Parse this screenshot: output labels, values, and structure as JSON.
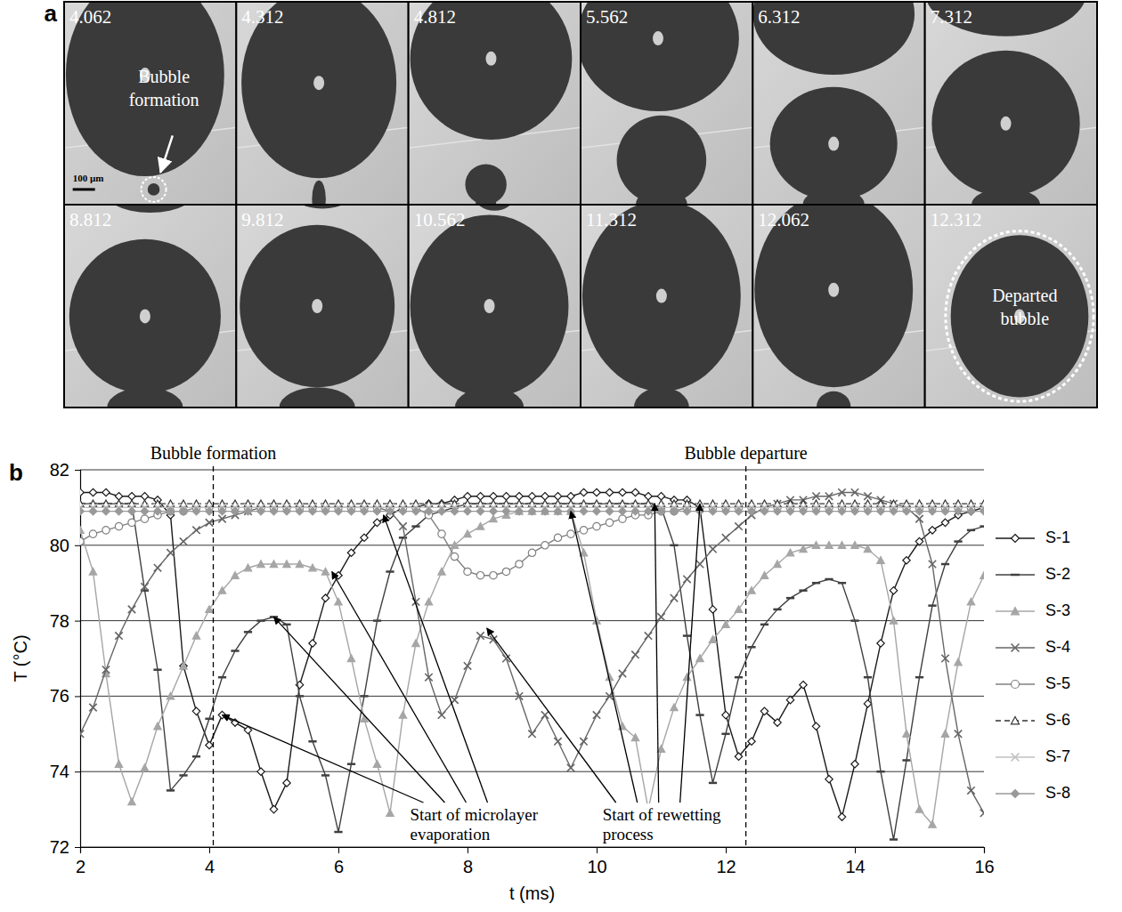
{
  "panel_a": {
    "label": "a",
    "frames": [
      4.062,
      4.312,
      4.812,
      5.562,
      6.312,
      7.312,
      8.812,
      9.812,
      10.562,
      11.312,
      12.062,
      12.312
    ],
    "bubble_formation_label": "Bubble formation",
    "departed_label": "Departed bubble",
    "scale_bar": "100 µm"
  },
  "panel_b": {
    "label": "b"
  },
  "chart_data": {
    "type": "line",
    "xlabel": "t (ms)",
    "ylabel": "T (°C)",
    "xlim": [
      2,
      16
    ],
    "ylim": [
      72,
      82
    ],
    "xticks": [
      2,
      4,
      6,
      8,
      10,
      12,
      14,
      16
    ],
    "yticks": [
      72,
      74,
      76,
      78,
      80,
      82
    ],
    "grid": "y",
    "legend": "right",
    "x": [
      2,
      2.2,
      2.4,
      2.6,
      2.8,
      3,
      3.2,
      3.4,
      3.6,
      3.8,
      4,
      4.2,
      4.4,
      4.6,
      4.8,
      5,
      5.2,
      5.4,
      5.6,
      5.8,
      6,
      6.2,
      6.4,
      6.6,
      6.8,
      7,
      7.2,
      7.4,
      7.6,
      7.8,
      8,
      8.2,
      8.4,
      8.6,
      8.8,
      9,
      9.2,
      9.4,
      9.6,
      9.8,
      10,
      10.2,
      10.4,
      10.6,
      10.8,
      11,
      11.2,
      11.4,
      11.6,
      11.8,
      12,
      12.2,
      12.4,
      12.6,
      12.8,
      13,
      13.2,
      13.4,
      13.6,
      13.8,
      14,
      14.2,
      14.4,
      14.6,
      14.8,
      15,
      15.2,
      15.4,
      15.6,
      15.8,
      16
    ],
    "series": [
      {
        "name": "S-1",
        "color": "#1a1a1a",
        "marker": "diamond-open",
        "line_style": "solid",
        "values": [
          81.4,
          81.4,
          81.4,
          81.3,
          81.3,
          81.3,
          81.2,
          80.8,
          76.8,
          75.6,
          74.7,
          75.5,
          75.3,
          75.1,
          74.0,
          73.0,
          73.7,
          76.3,
          77.4,
          78.6,
          79.2,
          79.8,
          80.2,
          80.6,
          80.8,
          81.0,
          81.0,
          81.1,
          81.1,
          81.2,
          81.3,
          81.3,
          81.3,
          81.3,
          81.3,
          81.3,
          81.3,
          81.3,
          81.3,
          81.4,
          81.4,
          81.4,
          81.4,
          81.4,
          81.3,
          81.3,
          81.2,
          81.2,
          81.0,
          78.3,
          75.5,
          74.4,
          74.8,
          75.6,
          75.3,
          75.9,
          76.3,
          75.2,
          73.8,
          72.8,
          74.2,
          75.8,
          77.4,
          78.8,
          79.6,
          80.1,
          80.4,
          80.6,
          80.8,
          80.9,
          81.0
        ]
      },
      {
        "name": "S-2",
        "color": "#404040",
        "marker": "dash",
        "line_style": "solid",
        "values": [
          81.1,
          81.1,
          81.1,
          81.1,
          81.1,
          78.8,
          76.7,
          73.5,
          73.9,
          74.4,
          75.4,
          76.5,
          77.2,
          77.7,
          78.0,
          78.1,
          77.9,
          76.0,
          74.8,
          73.9,
          72.4,
          74.2,
          76.0,
          78.0,
          79.3,
          80.2,
          80.5,
          80.8,
          80.9,
          81.0,
          81.1,
          81.1,
          81.1,
          81.1,
          81.1,
          81.1,
          81.1,
          81.1,
          81.1,
          81.1,
          81.1,
          81.1,
          81.1,
          81.1,
          81.1,
          81.0,
          80.0,
          77.6,
          75.5,
          73.7,
          75.0,
          76.5,
          77.3,
          77.9,
          78.3,
          78.6,
          78.8,
          79.0,
          79.1,
          79.0,
          78.0,
          76.5,
          74.0,
          72.2,
          74.3,
          76.5,
          78.4,
          79.5,
          80.1,
          80.4,
          80.5
        ]
      },
      {
        "name": "S-3",
        "color": "#a6a6a6",
        "marker": "triangle",
        "line_style": "solid",
        "values": [
          80.4,
          79.3,
          76.6,
          74.2,
          73.2,
          74.1,
          75.2,
          76.0,
          76.8,
          77.6,
          78.3,
          78.8,
          79.2,
          79.4,
          79.5,
          79.5,
          79.5,
          79.5,
          79.4,
          79.3,
          78.5,
          77.0,
          75.4,
          74.2,
          72.9,
          75.5,
          77.4,
          78.5,
          79.3,
          80.0,
          80.3,
          80.5,
          80.7,
          80.8,
          80.9,
          80.9,
          80.9,
          80.9,
          80.9,
          79.8,
          78.0,
          76.5,
          75.2,
          74.9,
          73.0,
          74.6,
          75.7,
          76.5,
          77.0,
          77.5,
          77.9,
          78.3,
          78.8,
          79.2,
          79.5,
          79.8,
          79.9,
          80.0,
          80.0,
          80.0,
          80.0,
          79.9,
          79.6,
          78.0,
          75.0,
          73.0,
          72.6,
          75.0,
          76.9,
          78.5,
          79.2
        ]
      },
      {
        "name": "S-4",
        "color": "#666666",
        "marker": "x",
        "line_style": "solid",
        "values": [
          75.0,
          75.7,
          76.7,
          77.6,
          78.3,
          78.9,
          79.4,
          79.8,
          80.1,
          80.4,
          80.6,
          80.7,
          80.8,
          80.9,
          81.0,
          81.0,
          81.0,
          81.0,
          81.0,
          81.0,
          81.0,
          81.0,
          81.0,
          81.0,
          80.9,
          80.5,
          78.5,
          76.5,
          75.5,
          75.9,
          76.8,
          77.6,
          77.5,
          77.0,
          76.0,
          75.0,
          75.5,
          74.8,
          74.1,
          74.8,
          75.5,
          76.0,
          76.6,
          77.1,
          77.6,
          78.1,
          78.6,
          79.1,
          79.5,
          79.9,
          80.2,
          80.5,
          80.8,
          81.0,
          81.1,
          81.2,
          81.2,
          81.3,
          81.3,
          81.4,
          81.4,
          81.3,
          81.2,
          81.1,
          81.0,
          80.7,
          79.5,
          77.0,
          75.0,
          73.5,
          72.9
        ]
      },
      {
        "name": "S-5",
        "color": "#808080",
        "marker": "circle-open",
        "line_style": "solid",
        "values": [
          80.1,
          80.3,
          80.4,
          80.5,
          80.6,
          80.7,
          80.8,
          80.9,
          80.9,
          81.0,
          81.0,
          81.0,
          81.0,
          81.0,
          81.0,
          81.0,
          81.0,
          81.0,
          81.0,
          81.0,
          81.0,
          81.0,
          81.0,
          81.0,
          81.0,
          81.0,
          81.0,
          80.8,
          80.3,
          79.7,
          79.3,
          79.2,
          79.2,
          79.3,
          79.5,
          79.8,
          80.0,
          80.2,
          80.3,
          80.4,
          80.5,
          80.6,
          80.7,
          80.8,
          80.8,
          80.9,
          80.9,
          81.0,
          81.0,
          81.0,
          81.0,
          81.0,
          81.0,
          81.0,
          81.0,
          81.0,
          81.0,
          81.0,
          81.0,
          81.0,
          81.0,
          81.0,
          81.0,
          81.0,
          81.0,
          81.0,
          81.0,
          81.0,
          81.0,
          81.0,
          81.0
        ]
      },
      {
        "name": "S-6",
        "color": "#333333",
        "marker": "triangle-open",
        "line_style": "dashed",
        "values": [
          81.1,
          81.1,
          81.1,
          81.1,
          81.1,
          81.1,
          81.1,
          81.1,
          81.1,
          81.1,
          81.1,
          81.1,
          81.1,
          81.1,
          81.1,
          81.1,
          81.1,
          81.1,
          81.1,
          81.1,
          81.1,
          81.1,
          81.1,
          81.1,
          81.1,
          81.1,
          81.1,
          81.1,
          81.1,
          81.1,
          81.1,
          81.1,
          81.1,
          81.1,
          81.1,
          81.1,
          81.1,
          81.1,
          81.1,
          81.1,
          81.1,
          81.1,
          81.1,
          81.1,
          81.1,
          81.1,
          81.1,
          81.1,
          81.1,
          81.1,
          81.1,
          81.1,
          81.1,
          81.1,
          81.1,
          81.1,
          81.1,
          81.1,
          81.1,
          81.1,
          81.1,
          81.1,
          81.1,
          81.1,
          81.1,
          81.1,
          81.1,
          81.1,
          81.1,
          81.1,
          81.1
        ]
      },
      {
        "name": "S-7",
        "color": "#c0c0c0",
        "marker": "x",
        "line_style": "solid",
        "values": [
          81.0,
          81.0,
          81.0,
          81.0,
          81.0,
          81.0,
          81.0,
          81.0,
          81.0,
          81.0,
          81.0,
          81.0,
          81.0,
          81.0,
          81.0,
          81.0,
          81.0,
          81.0,
          81.0,
          81.0,
          81.0,
          81.0,
          81.0,
          81.0,
          81.0,
          81.0,
          81.0,
          81.0,
          81.0,
          81.0,
          81.0,
          81.0,
          81.0,
          81.0,
          81.0,
          81.0,
          81.0,
          81.0,
          81.0,
          81.0,
          81.0,
          81.0,
          81.0,
          81.0,
          81.0,
          81.0,
          81.0,
          81.0,
          81.0,
          81.0,
          81.0,
          81.0,
          81.0,
          81.0,
          81.0,
          81.0,
          81.0,
          81.0,
          81.0,
          81.0,
          81.0,
          81.0,
          81.0,
          81.0,
          81.0,
          81.0,
          81.0,
          81.0,
          81.0,
          81.0,
          81.0
        ]
      },
      {
        "name": "S-8",
        "color": "#999999",
        "marker": "diamond",
        "line_style": "solid",
        "values": [
          80.9,
          80.9,
          80.9,
          80.9,
          80.9,
          80.9,
          80.9,
          80.9,
          80.9,
          80.9,
          80.9,
          80.9,
          80.9,
          80.9,
          80.9,
          80.9,
          80.9,
          80.9,
          80.9,
          80.9,
          80.9,
          80.9,
          80.9,
          80.9,
          80.9,
          80.9,
          80.9,
          80.9,
          80.9,
          80.9,
          80.9,
          80.9,
          80.9,
          80.9,
          80.9,
          80.9,
          80.9,
          80.9,
          80.9,
          80.9,
          80.9,
          80.9,
          80.9,
          80.9,
          80.9,
          80.9,
          80.9,
          80.9,
          80.9,
          80.9,
          80.9,
          80.9,
          80.9,
          80.9,
          80.9,
          80.9,
          80.9,
          80.9,
          80.9,
          80.9,
          80.9,
          80.9,
          80.9,
          80.9,
          80.9,
          80.9,
          80.9,
          80.9,
          80.9,
          80.9,
          80.9
        ]
      }
    ],
    "annotations": [
      {
        "text": "Bubble formation",
        "x": 4.062
      },
      {
        "text": "Bubble departure",
        "x": 12.312
      },
      {
        "text": "Start of microlayer evaporation",
        "points": [
          [
            4.2,
            75.5
          ],
          [
            5.0,
            78.1
          ],
          [
            5.9,
            79.3
          ],
          [
            6.7,
            80.8
          ]
        ]
      },
      {
        "text": "Start of rewetting process",
        "points": [
          [
            8.3,
            77.8
          ],
          [
            9.6,
            80.9
          ],
          [
            10.9,
            81.1
          ],
          [
            11.6,
            81.1
          ]
        ]
      }
    ]
  }
}
